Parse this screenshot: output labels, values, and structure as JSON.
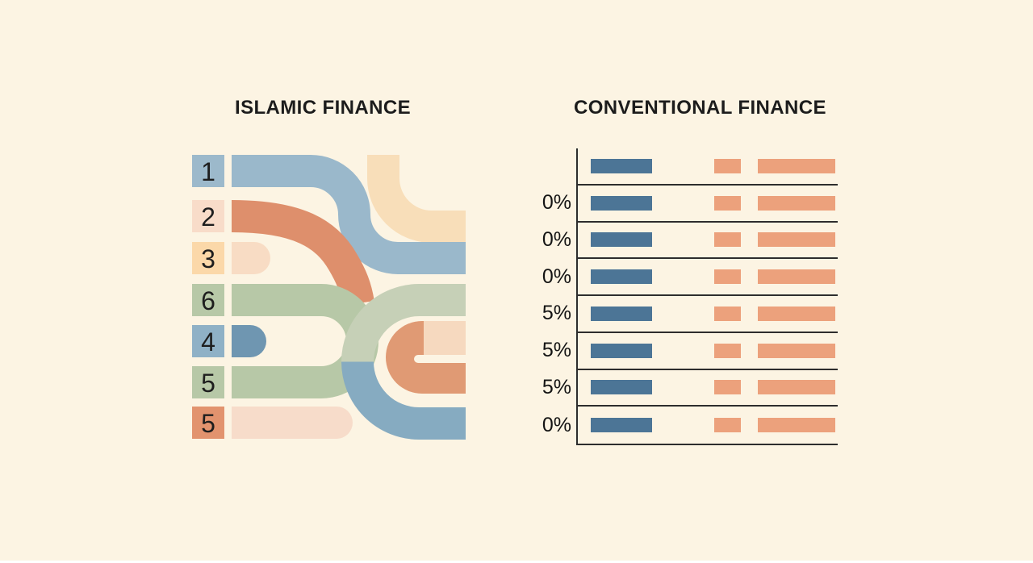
{
  "palette": {
    "background": "#fcf4e3",
    "text": "#1c1c1c",
    "chart_blue": "#4c7596",
    "chart_orange": "#eca17c",
    "grid_line": "#2d2d2d",
    "soft_blue": "#9ab8cb",
    "mid_blue": "#8fb1c6",
    "deep_stub_blue": "#6f96b1",
    "ring_blue": "#86abc1",
    "sage_green": "#b7c8a7",
    "ring_green": "#c6d0b7",
    "flow_orange": "#de8f6c",
    "square_orange": "#e2936e",
    "g_orange": "#e09a74",
    "pale_pink": "#f8dcc9",
    "pale_peach_band": "#f8deb9",
    "peach_square": "#fbd8a9"
  },
  "left_panel": {
    "title": "ISLAMIC FINANCE",
    "blocks": [
      {
        "label": "1",
        "color": "#9cb9cb"
      },
      {
        "label": "2",
        "color": "#f8dcc9"
      },
      {
        "label": "3",
        "color": "#fbd8a9"
      },
      {
        "label": "6",
        "color": "#b7c8a7"
      },
      {
        "label": "4",
        "color": "#8fb1c6"
      },
      {
        "label": "5",
        "color": "#b7c8a7"
      },
      {
        "label": "5",
        "color": "#e2936e"
      }
    ]
  },
  "right_panel": {
    "title": "CONVENTIONAL FINANCE"
  },
  "chart_data": {
    "type": "bar",
    "orientation": "horizontal",
    "title": "CONVENTIONAL FINANCE",
    "row_labels": [
      "",
      "0%",
      "0%",
      "0%",
      "5%",
      "5%",
      "5%",
      "0%"
    ],
    "series": [
      {
        "name": "primary-blue-bar",
        "color": "#4c7596",
        "relative_width": 76
      },
      {
        "name": "secondary-orange-small-bar",
        "color": "#eca17c",
        "relative_width": 33
      },
      {
        "name": "secondary-orange-large-bar",
        "color": "#eca17c",
        "relative_width": 96
      }
    ],
    "grid": "horizontal row separator lines",
    "legend": "none",
    "note": "every row repeats identical-length decorative bars; only row percentage labels vary"
  }
}
